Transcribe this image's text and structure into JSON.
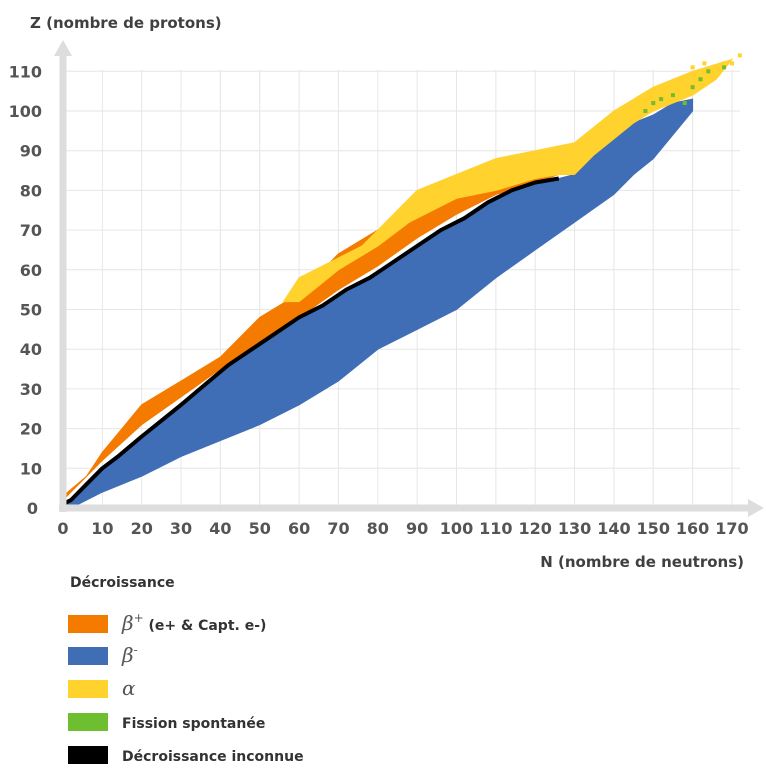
{
  "chart_data": {
    "type": "heatmap",
    "title": "",
    "xlabel": "N (nombre de neutrons)",
    "ylabel": "Z (nombre de protons)",
    "xlim": [
      0,
      175
    ],
    "ylim": [
      0,
      115
    ],
    "xticks": [
      0,
      10,
      20,
      30,
      40,
      50,
      60,
      70,
      80,
      90,
      100,
      110,
      120,
      130,
      140,
      150,
      160,
      170
    ],
    "yticks": [
      0,
      10,
      20,
      30,
      40,
      50,
      60,
      70,
      80,
      90,
      100,
      110
    ],
    "grid": true,
    "legend": {
      "title": "Décroissance",
      "position": "bottom-left",
      "entries": [
        {
          "id": "beta_plus",
          "symbol": "β",
          "sup": "+",
          "label": " (e+  & Capt. e-)",
          "color": "#F47B00"
        },
        {
          "id": "beta_minus",
          "symbol": "β",
          "sup": "-",
          "label": "",
          "color": "#3F6EB7"
        },
        {
          "id": "alpha",
          "symbol": "α",
          "sup": "",
          "label": "",
          "color": "#FFD22E"
        },
        {
          "id": "fission",
          "symbol": "",
          "sup": "",
          "label": "Fission spontanée",
          "color": "#6DBE30"
        },
        {
          "id": "unknown",
          "symbol": "",
          "sup": "",
          "label": "Décroissance inconnue",
          "color": "#000000"
        }
      ]
    },
    "stability_line": {
      "color": "#000000",
      "points_NZ": [
        [
          0,
          1
        ],
        [
          2,
          2
        ],
        [
          6,
          6
        ],
        [
          10,
          10
        ],
        [
          14,
          13
        ],
        [
          20,
          18
        ],
        [
          25,
          22
        ],
        [
          30,
          26
        ],
        [
          36,
          31
        ],
        [
          42,
          36
        ],
        [
          48,
          40
        ],
        [
          54,
          44
        ],
        [
          60,
          48
        ],
        [
          66,
          51
        ],
        [
          72,
          55
        ],
        [
          78,
          58
        ],
        [
          84,
          62
        ],
        [
          90,
          66
        ],
        [
          96,
          70
        ],
        [
          102,
          73
        ],
        [
          108,
          77
        ],
        [
          114,
          80
        ],
        [
          120,
          82
        ],
        [
          126,
          83
        ]
      ]
    },
    "boundaries": [
      {
        "region": "beta_plus",
        "lower_NZ": [
          [
            0,
            2
          ],
          [
            10,
            12
          ],
          [
            20,
            21
          ],
          [
            30,
            28
          ],
          [
            40,
            35
          ],
          [
            50,
            42
          ],
          [
            60,
            48
          ],
          [
            70,
            55
          ],
          [
            80,
            61
          ],
          [
            90,
            68
          ],
          [
            100,
            74
          ],
          [
            110,
            79
          ],
          [
            120,
            82
          ],
          [
            126,
            84
          ]
        ],
        "upper_NZ": [
          [
            0,
            3
          ],
          [
            6,
            8
          ],
          [
            10,
            14
          ],
          [
            20,
            26
          ],
          [
            30,
            32
          ],
          [
            40,
            38
          ],
          [
            50,
            48
          ],
          [
            60,
            54
          ],
          [
            70,
            64
          ],
          [
            80,
            70
          ],
          [
            90,
            76
          ],
          [
            100,
            80
          ],
          [
            110,
            83
          ],
          [
            120,
            86
          ],
          [
            130,
            88
          ]
        ]
      },
      {
        "region": "beta_minus",
        "lower_NZ": [
          [
            2,
            0
          ],
          [
            6,
            2
          ],
          [
            10,
            4
          ],
          [
            20,
            8
          ],
          [
            30,
            13
          ],
          [
            40,
            17
          ],
          [
            50,
            21
          ],
          [
            60,
            26
          ],
          [
            70,
            32
          ],
          [
            80,
            40
          ],
          [
            90,
            45
          ],
          [
            100,
            50
          ],
          [
            110,
            58
          ],
          [
            120,
            65
          ],
          [
            130,
            72
          ],
          [
            140,
            79
          ],
          [
            145,
            84
          ],
          [
            150,
            88
          ],
          [
            160,
            100
          ]
        ],
        "upper_NZ": [
          [
            0,
            1
          ],
          [
            2,
            2
          ],
          [
            6,
            6
          ],
          [
            10,
            10
          ],
          [
            14,
            13
          ],
          [
            20,
            18
          ],
          [
            25,
            22
          ],
          [
            30,
            26
          ],
          [
            36,
            31
          ],
          [
            42,
            36
          ],
          [
            48,
            40
          ],
          [
            54,
            44
          ],
          [
            60,
            48
          ],
          [
            66,
            51
          ],
          [
            72,
            55
          ],
          [
            78,
            58
          ],
          [
            84,
            62
          ],
          [
            90,
            66
          ],
          [
            96,
            70
          ],
          [
            102,
            73
          ],
          [
            108,
            77
          ],
          [
            114,
            80
          ],
          [
            120,
            82
          ],
          [
            126,
            83
          ],
          [
            130,
            84
          ],
          [
            135,
            89
          ],
          [
            140,
            93
          ],
          [
            145,
            97
          ],
          [
            150,
            99
          ],
          [
            155,
            102
          ],
          [
            160,
            103
          ]
        ]
      },
      {
        "region": "alpha",
        "lower_NZ": [
          [
            60,
            52
          ],
          [
            70,
            60
          ],
          [
            80,
            66
          ],
          [
            88,
            72
          ],
          [
            100,
            78
          ],
          [
            110,
            80
          ],
          [
            120,
            83
          ],
          [
            126,
            84
          ],
          [
            130,
            84
          ],
          [
            135,
            89
          ],
          [
            140,
            93
          ],
          [
            145,
            97
          ],
          [
            150,
            100
          ],
          [
            160,
            104
          ],
          [
            166,
            108
          ]
        ],
        "upper_NZ": [
          [
            56,
            52
          ],
          [
            60,
            58
          ],
          [
            76,
            66
          ],
          [
            84,
            74
          ],
          [
            90,
            80
          ],
          [
            100,
            84
          ],
          [
            110,
            88
          ],
          [
            120,
            90
          ],
          [
            130,
            92
          ],
          [
            140,
            100
          ],
          [
            150,
            106
          ],
          [
            160,
            110
          ],
          [
            170,
            113
          ]
        ]
      }
    ],
    "point_regions": [
      {
        "region": "fission",
        "points_NZ": [
          [
            148,
            100
          ],
          [
            150,
            102
          ],
          [
            152,
            103
          ],
          [
            155,
            104
          ],
          [
            158,
            102
          ],
          [
            160,
            106
          ],
          [
            162,
            108
          ],
          [
            164,
            110
          ],
          [
            168,
            111
          ]
        ]
      },
      {
        "region": "alpha",
        "points_NZ": [
          [
            160,
            111
          ],
          [
            163,
            112
          ],
          [
            166,
            110
          ],
          [
            168,
            112
          ],
          [
            170,
            112
          ],
          [
            172,
            114
          ]
        ]
      }
    ]
  }
}
